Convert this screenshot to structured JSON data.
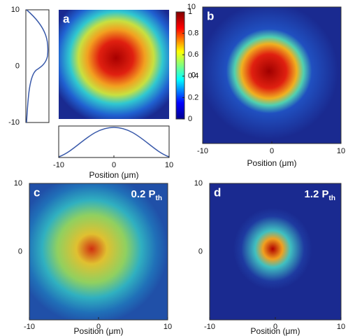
{
  "panels": [
    {
      "label": "a",
      "xlabel": "Position (μm)",
      "xticks": [
        -10,
        0,
        10
      ],
      "yticks": [
        -10,
        0,
        10
      ]
    },
    {
      "label": "b",
      "xlabel": "Position (μm)",
      "xticks": [
        -10,
        0,
        10
      ],
      "yticks": [
        0,
        10
      ]
    },
    {
      "label": "c",
      "xlabel": "Position (μm)",
      "xticks": [
        -10,
        0,
        10
      ],
      "yticks": [
        0,
        10
      ],
      "annotation": {
        "main": "0.2 P",
        "sub": "th"
      }
    },
    {
      "label": "d",
      "xlabel": "Position (μm)",
      "xticks": [
        -10,
        0,
        10
      ],
      "yticks": [
        0,
        10
      ],
      "annotation": {
        "main": "1.2 P",
        "sub": "th"
      }
    }
  ],
  "axis_range": [
    -10,
    10
  ],
  "colorbar": {
    "ticks": [
      0,
      0.2,
      0.4,
      0.6,
      0.8,
      1
    ],
    "range": [
      0,
      1
    ]
  }
}
